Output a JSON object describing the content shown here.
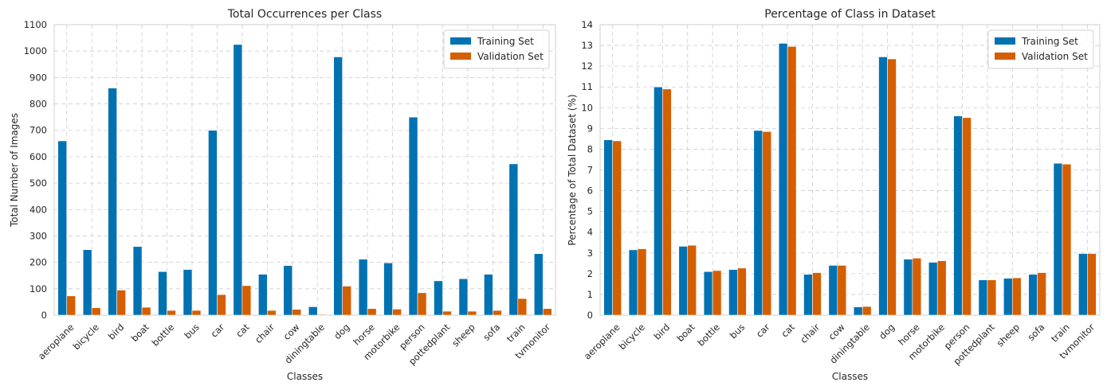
{
  "chart_data": [
    {
      "type": "bar",
      "title": "Total Occurrences per Class",
      "xlabel": "Classes",
      "ylabel": "Total Number of Images",
      "ylim": [
        0,
        1100
      ],
      "yticks": [
        0,
        100,
        200,
        300,
        400,
        500,
        600,
        700,
        800,
        900,
        1000,
        1100
      ],
      "grid": true,
      "legend_position": "top-right",
      "categories": [
        "aeroplane",
        "bicycle",
        "bird",
        "boat",
        "bottle",
        "bus",
        "car",
        "cat",
        "chair",
        "cow",
        "diningtable",
        "dog",
        "horse",
        "motorbike",
        "person",
        "pottedplant",
        "sheep",
        "sofa",
        "train",
        "tvmonitor"
      ],
      "series": [
        {
          "name": "Training Set",
          "color": "#0072b2",
          "values": [
            660,
            248,
            860,
            260,
            165,
            173,
            700,
            1025,
            155,
            188,
            32,
            978,
            212,
            198,
            750,
            130,
            138,
            155,
            573,
            233
          ]
        },
        {
          "name": "Validation Set",
          "color": "#d55e00",
          "values": [
            73,
            28,
            95,
            30,
            18,
            18,
            78,
            112,
            18,
            22,
            3,
            110,
            25,
            23,
            85,
            15,
            15,
            18,
            63,
            25
          ]
        }
      ]
    },
    {
      "type": "bar",
      "title": "Percentage of Class in Dataset",
      "xlabel": "Classes",
      "ylabel": "Percentage of Total Dataset (%)",
      "ylim": [
        0,
        14
      ],
      "yticks": [
        0,
        1,
        2,
        3,
        4,
        5,
        6,
        7,
        8,
        9,
        10,
        11,
        12,
        13,
        14
      ],
      "grid": true,
      "legend_position": "top-right",
      "categories": [
        "aeroplane",
        "bicycle",
        "bird",
        "boat",
        "bottle",
        "bus",
        "car",
        "cat",
        "chair",
        "cow",
        "diningtable",
        "dog",
        "horse",
        "motorbike",
        "person",
        "pottedplant",
        "sheep",
        "sofa",
        "train",
        "tvmonitor"
      ],
      "series": [
        {
          "name": "Training Set",
          "color": "#0072b2",
          "values": [
            8.45,
            3.15,
            11.0,
            3.32,
            2.1,
            2.2,
            8.9,
            13.1,
            1.97,
            2.4,
            0.4,
            12.45,
            2.7,
            2.55,
            9.6,
            1.7,
            1.78,
            1.97,
            7.32,
            2.97
          ]
        },
        {
          "name": "Validation Set",
          "color": "#d55e00",
          "values": [
            8.4,
            3.2,
            10.9,
            3.37,
            2.15,
            2.27,
            8.85,
            12.95,
            2.05,
            2.4,
            0.42,
            12.35,
            2.75,
            2.62,
            9.52,
            1.7,
            1.8,
            2.05,
            7.28,
            2.97
          ]
        }
      ]
    }
  ]
}
